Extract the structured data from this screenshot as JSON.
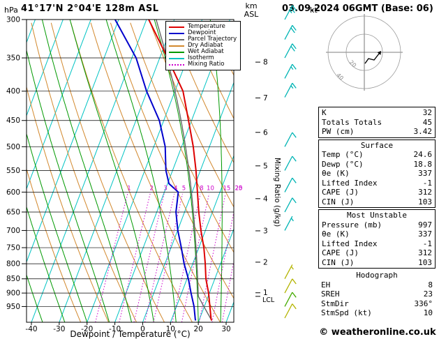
{
  "header": {
    "pressure_unit": "hPa",
    "station": "41°17'N 2°04'E 128m ASL",
    "datetime": "03.09.2024 06GMT (Base: 06)"
  },
  "axes": {
    "km_line1": "km",
    "km_line2": "ASL",
    "x_label": "Dewpoint / Temperature (°C)"
  },
  "legend": {
    "items": [
      {
        "label": "Temperature",
        "color": "#dd0000",
        "dash": false
      },
      {
        "label": "Dewpoint",
        "color": "#0000cc",
        "dash": false
      },
      {
        "label": "Parcel Trajectory",
        "color": "#666666",
        "dash": false
      },
      {
        "label": "Dry Adiabat",
        "color": "#d2882d",
        "dash": false
      },
      {
        "label": "Wet Adiabat",
        "color": "#009900",
        "dash": false
      },
      {
        "label": "Isotherm",
        "color": "#00c3c3",
        "dash": false
      },
      {
        "label": "Mixing Ratio",
        "color": "#cc00cc",
        "dash": true
      }
    ]
  },
  "hodograph": {
    "unit": "kt",
    "rings": [
      {
        "kt": 20
      },
      {
        "kt": 40
      }
    ],
    "trace": [
      [
        1,
        16
      ],
      [
        6,
        9
      ],
      [
        14,
        11
      ],
      [
        21,
        2
      ]
    ]
  },
  "stats": {
    "groups": [
      {
        "title": null,
        "box": true,
        "rows": [
          [
            "K",
            "32"
          ],
          [
            "Totals Totals",
            "45"
          ],
          [
            "PW (cm)",
            "3.42"
          ]
        ]
      },
      {
        "title": "Surface",
        "box": true,
        "rows": [
          [
            "Temp (°C)",
            "24.6"
          ],
          [
            "Dewp (°C)",
            "18.8"
          ],
          [
            "θe (K)",
            "337"
          ],
          [
            "Lifted Index",
            "-1"
          ],
          [
            "CAPE (J)",
            "312"
          ],
          [
            "CIN (J)",
            "103"
          ]
        ]
      },
      {
        "title": "Most Unstable",
        "box": true,
        "rows": [
          [
            "Pressure (mb)",
            "997"
          ],
          [
            "θe (K)",
            "337"
          ],
          [
            "Lifted Index",
            "-1"
          ],
          [
            "CAPE (J)",
            "312"
          ],
          [
            "CIN (J)",
            "103"
          ]
        ]
      },
      {
        "title": "Hodograph",
        "box": false,
        "rows": [
          [
            "EH",
            "8"
          ],
          [
            "SREH",
            "23"
          ],
          [
            "StmDir",
            "336°"
          ],
          [
            "StmSpd (kt)",
            "10"
          ]
        ]
      }
    ]
  },
  "footer": {
    "copyright": "© weatheronline.co.uk"
  },
  "chart_data": {
    "type": "skewt_log_p_sounding",
    "pressure_axis": {
      "unit": "hPa",
      "min": 300,
      "max": 1012,
      "ticks": [
        300,
        350,
        400,
        450,
        500,
        550,
        600,
        650,
        700,
        750,
        800,
        850,
        900,
        950
      ]
    },
    "temp_axis": {
      "label": "Dewpoint / Temperature (°C)",
      "unit": "°C",
      "ticks": [
        -40,
        -30,
        -20,
        -10,
        0,
        10,
        20,
        30
      ]
    },
    "km_axis": {
      "label": "km ASL",
      "ticks": [
        {
          "km": 8,
          "p": 356
        },
        {
          "km": 7,
          "p": 411
        },
        {
          "km": 6,
          "p": 472
        },
        {
          "km": 5,
          "p": 540
        },
        {
          "km": 4,
          "p": 616
        },
        {
          "km": 3,
          "p": 701
        },
        {
          "km": 2,
          "p": 795
        },
        {
          "km": 1,
          "p": 899
        }
      ]
    },
    "mixing_axis": {
      "label": "Mixing Ratio (g/kg)",
      "values": [
        1,
        2,
        3,
        4,
        5,
        8,
        10,
        15,
        20,
        25
      ],
      "label_p": 590
    },
    "skew": 0.38,
    "isotherm_step": 10,
    "dry_adiabats_K": {
      "min": 250,
      "max": 430,
      "step": 10
    },
    "wet_adiabats_C": {
      "min": -52,
      "max": 36,
      "step": 8
    },
    "temperature_profile": {
      "p": [
        1005,
        1000,
        950,
        900,
        850,
        800,
        750,
        700,
        650,
        600,
        550,
        500,
        450,
        400,
        350,
        300
      ],
      "t": [
        24.6,
        24.2,
        22.0,
        19.7,
        16.8,
        14.5,
        11.8,
        8.4,
        5.1,
        1.9,
        -1.6,
        -5.8,
        -11.1,
        -17.1,
        -27.2,
        -39.2
      ]
    },
    "dewpoint_profile": {
      "p": [
        1005,
        1000,
        950,
        900,
        850,
        800,
        750,
        700,
        650,
        620,
        600,
        580,
        550,
        500,
        450,
        400,
        350,
        300
      ],
      "t": [
        18.8,
        18.5,
        16.3,
        13.4,
        10.5,
        6.9,
        3.7,
        0.1,
        -3.1,
        -4.2,
        -5.0,
        -9.5,
        -12.4,
        -15.9,
        -21.6,
        -30.2,
        -38.5,
        -51.3
      ]
    },
    "parcel": {
      "surface_p": 1005,
      "surface_t": 24.6,
      "surface_td": 18.8,
      "lcl_p": 912,
      "lcl_label": "LCL",
      "top_p": 300
    },
    "wind_barbs": [
      {
        "p": 300,
        "spd": 25,
        "color": "#00b4b4"
      },
      {
        "p": 325,
        "spd": 20,
        "color": "#00b4b4"
      },
      {
        "p": 350,
        "spd": 20,
        "color": "#00b4b4"
      },
      {
        "p": 380,
        "spd": 15,
        "color": "#00b4b4"
      },
      {
        "p": 410,
        "spd": 15,
        "color": "#00b4b4"
      },
      {
        "p": 500,
        "spd": 10,
        "color": "#00b4b4"
      },
      {
        "p": 550,
        "spd": 10,
        "color": "#00b4b4"
      },
      {
        "p": 600,
        "spd": 10,
        "color": "#00b4b4"
      },
      {
        "p": 650,
        "spd": 10,
        "color": "#00b4b4"
      },
      {
        "p": 700,
        "spd": 5,
        "color": "#00b4b4"
      },
      {
        "p": 850,
        "spd": 5,
        "color": "#b4b400"
      },
      {
        "p": 900,
        "spd": 10,
        "color": "#b4b400"
      },
      {
        "p": 950,
        "spd": 10,
        "color": "#44aa00"
      },
      {
        "p": 995,
        "spd": 10,
        "color": "#b4b400"
      }
    ],
    "colors": {
      "temperature": "#dd0000",
      "dewpoint": "#0000cc",
      "parcel": "#666666",
      "dry_adiabat": "#d2882d",
      "wet_adiabat": "#009900",
      "isotherm": "#00c3c3",
      "mixing_ratio": "#cc00cc"
    }
  }
}
